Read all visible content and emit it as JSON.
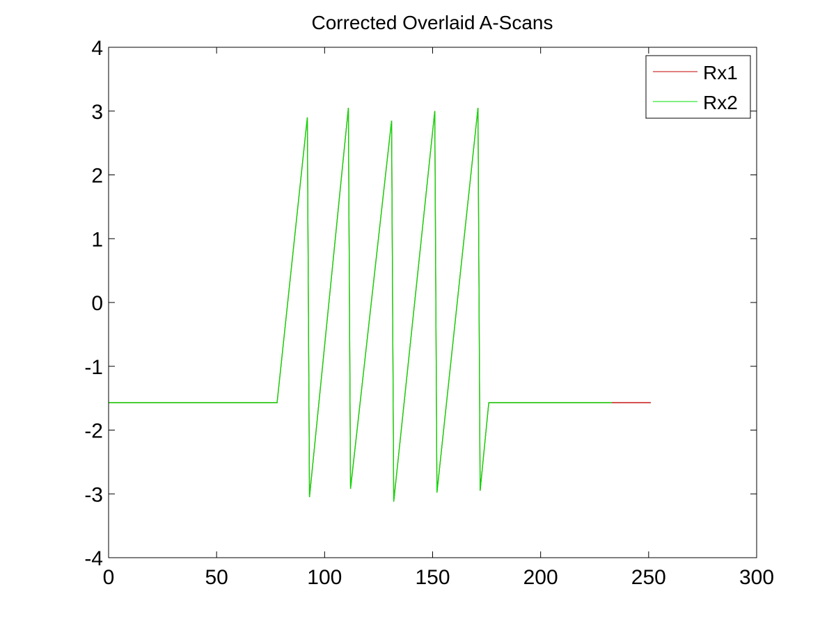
{
  "chart_data": {
    "type": "line",
    "title": "Corrected Overlaid A-Scans",
    "xlabel": "",
    "ylabel": "",
    "xlim": [
      0,
      300
    ],
    "ylim": [
      -4,
      4
    ],
    "xticks": [
      0,
      50,
      100,
      150,
      200,
      250,
      300
    ],
    "yticks": [
      -4,
      -3,
      -2,
      -1,
      0,
      1,
      2,
      3,
      4
    ],
    "xtick_labels": [
      "0",
      "50",
      "100",
      "150",
      "200",
      "250",
      "300"
    ],
    "ytick_labels": [
      "-4",
      "-3",
      "-2",
      "-1",
      "0",
      "1",
      "2",
      "3",
      "4"
    ],
    "grid": false,
    "legend_position": "top-right",
    "series": [
      {
        "name": "Rx1",
        "color": "#c00000",
        "x": [
          0,
          78,
          92,
          93,
          111,
          112,
          131,
          132,
          151,
          152,
          171,
          172,
          176,
          251
        ],
        "y": [
          -1.57,
          -1.57,
          2.9,
          -3.05,
          3.05,
          -2.92,
          2.85,
          -3.12,
          3.0,
          -2.98,
          3.05,
          -2.95,
          -1.57,
          -1.57
        ]
      },
      {
        "name": "Rx2",
        "color": "#00e000",
        "x": [
          0,
          78,
          92,
          93,
          111,
          112,
          131,
          132,
          151,
          152,
          171,
          172,
          176,
          233
        ],
        "y": [
          -1.57,
          -1.57,
          2.9,
          -3.05,
          3.05,
          -2.92,
          2.85,
          -3.12,
          3.0,
          -2.98,
          3.05,
          -2.95,
          -1.57,
          -1.57
        ]
      }
    ]
  }
}
